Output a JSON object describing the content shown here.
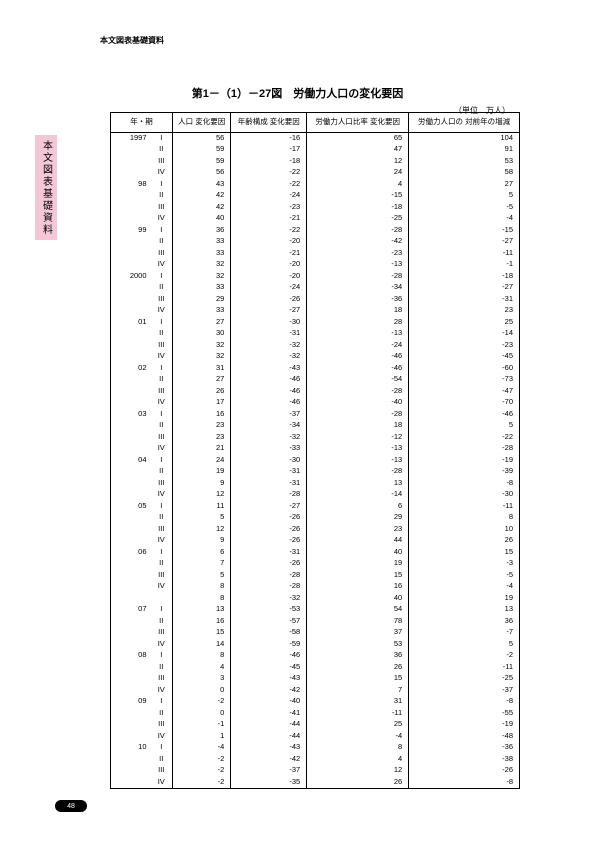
{
  "header_label": "本文図表基礎資料",
  "side_tab": "本文図表基礎資料",
  "title": "第1－（1）－27図　労働力人口の変化要因",
  "unit": "（単位　万人）",
  "page_number": "48",
  "columns": [
    "年・期",
    "人口\n変化要因",
    "年齢構成\n変化要因",
    "労働力人口比率\n変化要因",
    "労働力人口の\n対前年の増減"
  ],
  "rows": [
    {
      "year": "1997",
      "period": "I",
      "c1": "56",
      "c2": "-16",
      "c3": "65",
      "c4": "104"
    },
    {
      "year": "",
      "period": "II",
      "c1": "59",
      "c2": "-17",
      "c3": "47",
      "c4": "91"
    },
    {
      "year": "",
      "period": "III",
      "c1": "59",
      "c2": "-18",
      "c3": "12",
      "c4": "53"
    },
    {
      "year": "",
      "period": "IV",
      "c1": "56",
      "c2": "-22",
      "c3": "24",
      "c4": "58"
    },
    {
      "year": "98",
      "period": "I",
      "c1": "43",
      "c2": "-22",
      "c3": "4",
      "c4": "27"
    },
    {
      "year": "",
      "period": "II",
      "c1": "42",
      "c2": "-24",
      "c3": "-15",
      "c4": "5"
    },
    {
      "year": "",
      "period": "III",
      "c1": "42",
      "c2": "-23",
      "c3": "-18",
      "c4": "-5"
    },
    {
      "year": "",
      "period": "IV",
      "c1": "40",
      "c2": "-21",
      "c3": "-25",
      "c4": "-4"
    },
    {
      "year": "99",
      "period": "I",
      "c1": "36",
      "c2": "-22",
      "c3": "-28",
      "c4": "-15"
    },
    {
      "year": "",
      "period": "II",
      "c1": "33",
      "c2": "-20",
      "c3": "-42",
      "c4": "-27"
    },
    {
      "year": "",
      "period": "III",
      "c1": "33",
      "c2": "-21",
      "c3": "-23",
      "c4": "-11"
    },
    {
      "year": "",
      "period": "IV",
      "c1": "32",
      "c2": "-20",
      "c3": "-13",
      "c4": "-1"
    },
    {
      "year": "2000",
      "period": "I",
      "c1": "32",
      "c2": "-20",
      "c3": "-28",
      "c4": "-18"
    },
    {
      "year": "",
      "period": "II",
      "c1": "33",
      "c2": "-24",
      "c3": "-34",
      "c4": "-27"
    },
    {
      "year": "",
      "period": "III",
      "c1": "29",
      "c2": "-26",
      "c3": "-36",
      "c4": "-31"
    },
    {
      "year": "",
      "period": "IV",
      "c1": "33",
      "c2": "-27",
      "c3": "18",
      "c4": "23"
    },
    {
      "year": "01",
      "period": "I",
      "c1": "27",
      "c2": "-30",
      "c3": "28",
      "c4": "25"
    },
    {
      "year": "",
      "period": "II",
      "c1": "30",
      "c2": "-31",
      "c3": "-13",
      "c4": "-14"
    },
    {
      "year": "",
      "period": "III",
      "c1": "32",
      "c2": "-32",
      "c3": "-24",
      "c4": "-23"
    },
    {
      "year": "",
      "period": "IV",
      "c1": "32",
      "c2": "-32",
      "c3": "-46",
      "c4": "-45"
    },
    {
      "year": "02",
      "period": "I",
      "c1": "31",
      "c2": "-43",
      "c3": "-46",
      "c4": "-60"
    },
    {
      "year": "",
      "period": "II",
      "c1": "27",
      "c2": "-46",
      "c3": "-54",
      "c4": "-73"
    },
    {
      "year": "",
      "period": "III",
      "c1": "26",
      "c2": "-46",
      "c3": "-28",
      "c4": "-47"
    },
    {
      "year": "",
      "period": "IV",
      "c1": "17",
      "c2": "-46",
      "c3": "-40",
      "c4": "-70"
    },
    {
      "year": "03",
      "period": "I",
      "c1": "16",
      "c2": "-37",
      "c3": "-28",
      "c4": "-46"
    },
    {
      "year": "",
      "period": "II",
      "c1": "23",
      "c2": "-34",
      "c3": "18",
      "c4": "5"
    },
    {
      "year": "",
      "period": "III",
      "c1": "23",
      "c2": "-32",
      "c3": "-12",
      "c4": "-22"
    },
    {
      "year": "",
      "period": "IV",
      "c1": "21",
      "c2": "-33",
      "c3": "-13",
      "c4": "-28"
    },
    {
      "year": "04",
      "period": "I",
      "c1": "24",
      "c2": "-30",
      "c3": "-13",
      "c4": "-19"
    },
    {
      "year": "",
      "period": "II",
      "c1": "19",
      "c2": "-31",
      "c3": "-28",
      "c4": "-39"
    },
    {
      "year": "",
      "period": "III",
      "c1": "9",
      "c2": "-31",
      "c3": "13",
      "c4": "-8"
    },
    {
      "year": "",
      "period": "IV",
      "c1": "12",
      "c2": "-28",
      "c3": "-14",
      "c4": "-30"
    },
    {
      "year": "05",
      "period": "I",
      "c1": "11",
      "c2": "-27",
      "c3": "6",
      "c4": "-11"
    },
    {
      "year": "",
      "period": "II",
      "c1": "5",
      "c2": "-26",
      "c3": "29",
      "c4": "8"
    },
    {
      "year": "",
      "period": "III",
      "c1": "12",
      "c2": "-26",
      "c3": "23",
      "c4": "10"
    },
    {
      "year": "",
      "period": "IV",
      "c1": "9",
      "c2": "-26",
      "c3": "44",
      "c4": "26"
    },
    {
      "year": "06",
      "period": "I",
      "c1": "6",
      "c2": "-31",
      "c3": "40",
      "c4": "15"
    },
    {
      "year": "",
      "period": "II",
      "c1": "7",
      "c2": "-26",
      "c3": "19",
      "c4": "-3"
    },
    {
      "year": "",
      "period": "III",
      "c1": "5",
      "c2": "-28",
      "c3": "15",
      "c4": "-5"
    },
    {
      "year": "",
      "period": "IV",
      "c1": "8",
      "c2": "-28",
      "c3": "16",
      "c4": "-4"
    },
    {
      "year": "",
      "period": "",
      "c1": "8",
      "c2": "-32",
      "c3": "40",
      "c4": "19"
    },
    {
      "year": "07",
      "period": "I",
      "c1": "13",
      "c2": "-53",
      "c3": "54",
      "c4": "13"
    },
    {
      "year": "",
      "period": "II",
      "c1": "16",
      "c2": "-57",
      "c3": "78",
      "c4": "36"
    },
    {
      "year": "",
      "period": "III",
      "c1": "15",
      "c2": "-58",
      "c3": "37",
      "c4": "-7"
    },
    {
      "year": "",
      "period": "IV",
      "c1": "14",
      "c2": "-59",
      "c3": "53",
      "c4": "5"
    },
    {
      "year": "08",
      "period": "I",
      "c1": "8",
      "c2": "-46",
      "c3": "36",
      "c4": "-2"
    },
    {
      "year": "",
      "period": "II",
      "c1": "4",
      "c2": "-45",
      "c3": "26",
      "c4": "-11"
    },
    {
      "year": "",
      "period": "III",
      "c1": "3",
      "c2": "-43",
      "c3": "15",
      "c4": "-25"
    },
    {
      "year": "",
      "period": "IV",
      "c1": "0",
      "c2": "-42",
      "c3": "7",
      "c4": "-37"
    },
    {
      "year": "09",
      "period": "I",
      "c1": "-2",
      "c2": "-40",
      "c3": "31",
      "c4": "-8"
    },
    {
      "year": "",
      "period": "II",
      "c1": "0",
      "c2": "-41",
      "c3": "-11",
      "c4": "-55"
    },
    {
      "year": "",
      "period": "III",
      "c1": "-1",
      "c2": "-44",
      "c3": "25",
      "c4": "-19"
    },
    {
      "year": "",
      "period": "IV",
      "c1": "1",
      "c2": "-44",
      "c3": "-4",
      "c4": "-48"
    },
    {
      "year": "10",
      "period": "I",
      "c1": "-4",
      "c2": "-43",
      "c3": "8",
      "c4": "-36"
    },
    {
      "year": "",
      "period": "II",
      "c1": "-2",
      "c2": "-42",
      "c3": "4",
      "c4": "-38"
    },
    {
      "year": "",
      "period": "III",
      "c1": "-2",
      "c2": "-37",
      "c3": "12",
      "c4": "-26"
    },
    {
      "year": "",
      "period": "IV",
      "c1": "-2",
      "c2": "-35",
      "c3": "26",
      "c4": "-8"
    }
  ]
}
